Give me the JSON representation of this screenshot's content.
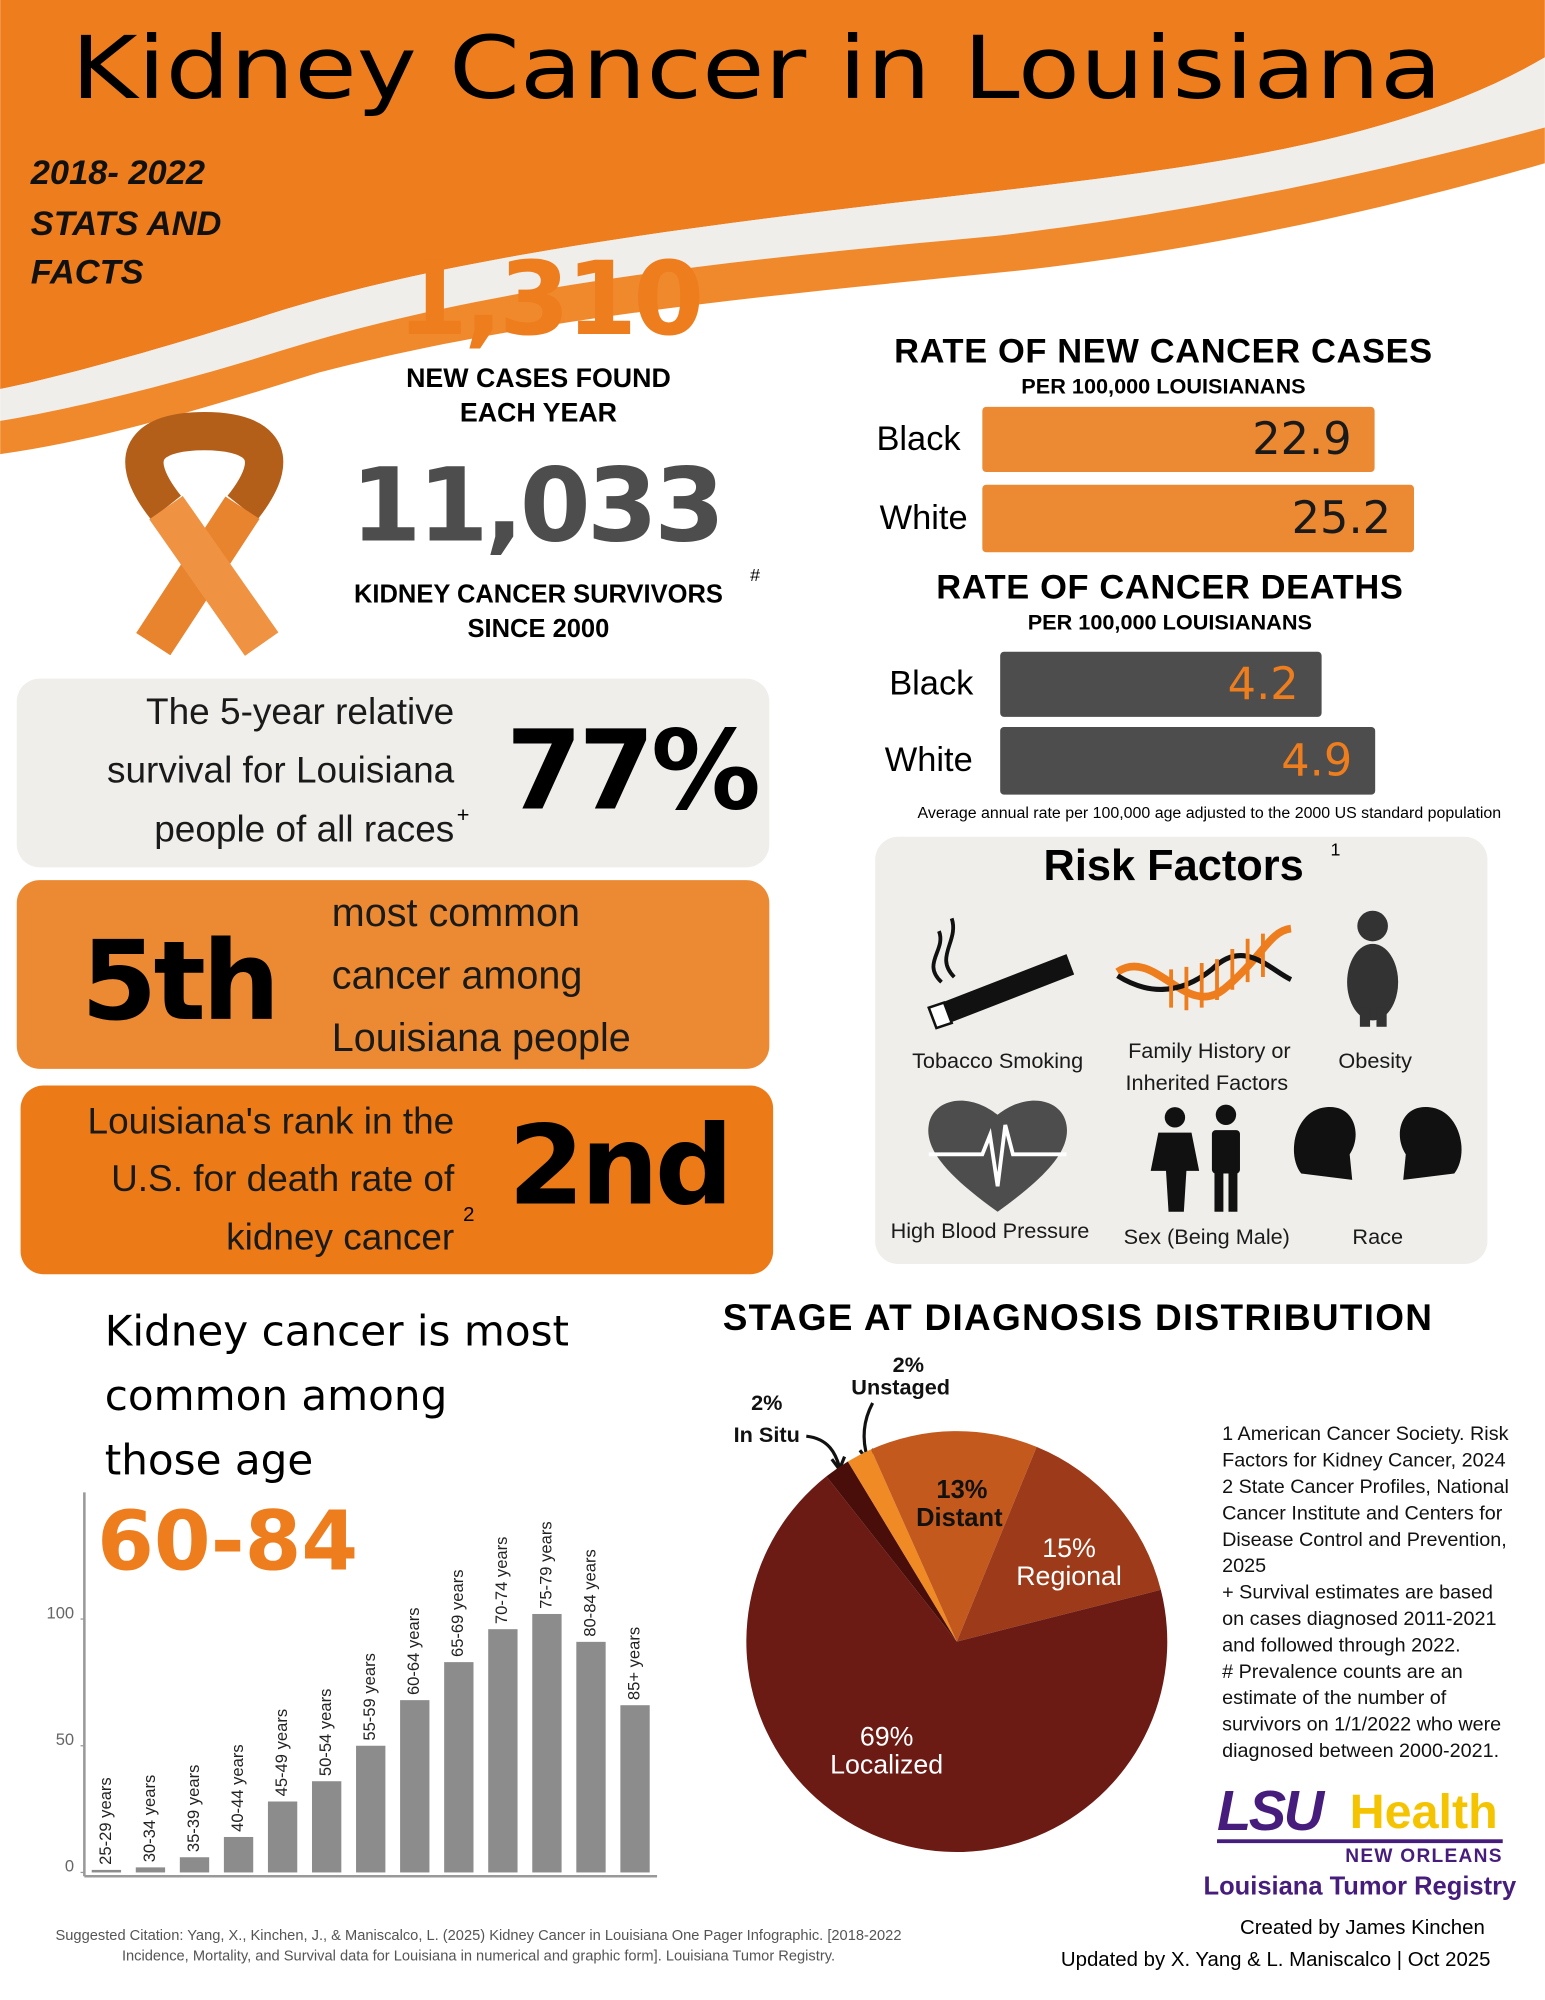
{
  "header": {
    "title": "Kidney Cancer in Louisiana",
    "subtitle": [
      "2018- 2022",
      "STATS AND",
      "FACTS"
    ]
  },
  "stats": {
    "new_cases": "1,310",
    "new_cases_label": [
      "NEW CASES FOUND",
      "EACH YEAR"
    ],
    "survivors": "11,033",
    "survivors_label": [
      "KIDNEY CANCER SURVIVORS",
      "SINCE 2000"
    ],
    "survivors_mark": "#",
    "survival_text": [
      "The 5-year relative",
      "survival for Louisiana",
      "people of all races"
    ],
    "survival_mark": "+",
    "survival_value": "77%",
    "rank_common": "5th",
    "rank_common_text": [
      "most common",
      "cancer among",
      "Louisiana people"
    ],
    "rank_death_text": [
      "Louisiana's rank in the",
      "U.S. for death rate of",
      "kidney cancer"
    ],
    "rank_death_mark": "2",
    "rank_death": "2nd"
  },
  "rate_note": "Average annual rate per 100,000 age adjusted to the 2000 US standard population",
  "risk_factors": {
    "title": "Risk Factors",
    "mark": "1",
    "items": [
      "Tobacco Smoking",
      "Family History or",
      "Inherited Factors",
      "Obesity",
      "High Blood Pressure",
      "Sex (Being Male)",
      "Race"
    ]
  },
  "footnotes": [
    "1 American Cancer Society. Risk",
    "Factors for Kidney Cancer, 2024",
    "2 State Cancer Profiles, National",
    "Cancer Institute and Centers for",
    "Disease Control and Prevention,",
    "2025",
    "+ Survival estimates are based",
    "on cases diagnosed 2011-2021",
    "and followed through 2022.",
    "# Prevalence counts are an",
    "estimate of the number of",
    "survivors on 1/1/2022 who were",
    "diagnosed between 2000-2021."
  ],
  "logo": {
    "lsu": "LSU",
    "health": "Health",
    "city": "NEW ORLEANS",
    "registry": "Louisiana Tumor Registry"
  },
  "credits": [
    "Created by James Kinchen",
    "Updated by X. Yang & L. Maniscalco | Oct 2025"
  ],
  "citation": [
    "Suggested Citation: Yang, X., Kinchen, J., & Maniscalco, L. (2025) Kidney Cancer in Louisiana One Pager Infographic. [2018-2022",
    "Incidence, Mortality, and Survival data for Louisiana in numerical and graphic form]. Louisiana Tumor Registry."
  ],
  "chart_data": [
    {
      "type": "hbar",
      "title": "RATE OF NEW CANCER CASES",
      "subtitle": "PER 100,000 LOUISIANANS",
      "categories": [
        "Black",
        "White"
      ],
      "values": [
        22.9,
        25.2
      ],
      "color": "#ec8a34",
      "label_color": "#1a1a1a"
    },
    {
      "type": "hbar",
      "title": "RATE OF CANCER DEATHS",
      "subtitle": "PER 100,000 LOUISIANANS",
      "categories": [
        "Black",
        "White"
      ],
      "values": [
        4.2,
        4.9
      ],
      "color": "#4d4d4d",
      "label_color": "#ee7d1e"
    },
    {
      "type": "pie",
      "title": "STAGE AT DIAGNOSIS DISTRIBUTION",
      "categories": [
        "In Situ",
        "Unstaged",
        "Distant",
        "Regional",
        "Localized"
      ],
      "values": [
        2,
        2,
        13,
        15,
        69
      ],
      "value_labels": [
        "2%",
        "2%",
        "13%",
        "15%",
        "69%"
      ],
      "colors": [
        "#4a0e0a",
        "#f08a24",
        "#c4591e",
        "#9c3a1a",
        "#6b1a14"
      ]
    },
    {
      "type": "bar",
      "title": [
        "Kidney cancer is most",
        "common among",
        "those age"
      ],
      "highlight": "60-84",
      "categories": [
        "25-29 years",
        "30-34 years",
        "35-39 years",
        "40-44 years",
        "45-49 years",
        "50-54 years",
        "55-59 years",
        "60-64 years",
        "65-69 years",
        "70-74 years",
        "75-79 years",
        "80-84 years",
        "85+ years"
      ],
      "values": [
        1,
        2,
        6,
        14,
        28,
        36,
        50,
        68,
        83,
        96,
        102,
        91,
        66
      ],
      "color": "#8c8c8c",
      "ylim": [
        0,
        150
      ],
      "yticks": [
        0,
        50,
        100
      ]
    }
  ]
}
